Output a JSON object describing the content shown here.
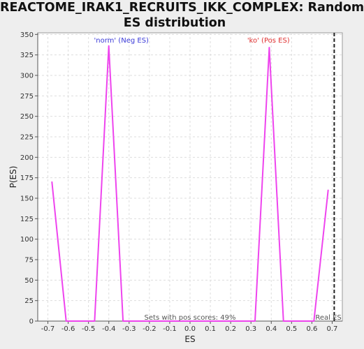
{
  "chart_data": {
    "type": "line",
    "title_lines": [
      "REACTOME_IRAK1_RECRUITS_IKK_COMPLEX: Random",
      "ES distribution"
    ],
    "xlabel": "ES",
    "ylabel": "P(ES)",
    "xlim": [
      -0.75,
      0.75
    ],
    "ylim": [
      0,
      352
    ],
    "xticks": [
      -0.7,
      -0.6,
      -0.5,
      -0.4,
      -0.3,
      -0.2,
      -0.1,
      0.0,
      0.1,
      0.2,
      0.3,
      0.4,
      0.5,
      0.6,
      0.7
    ],
    "xtick_labels": [
      "-0.7",
      "-0.6",
      "-0.5",
      "-0.4",
      "-0.3",
      "-0.2",
      "-0.1",
      "0.0",
      "0.1",
      "0.2",
      "0.3",
      "0.4",
      "0.5",
      "0.6",
      "0.7"
    ],
    "yticks": [
      0,
      25,
      50,
      75,
      100,
      125,
      150,
      175,
      200,
      225,
      250,
      275,
      300,
      325,
      350
    ],
    "ytick_labels": [
      "0",
      "25",
      "50",
      "75",
      "100",
      "125",
      "150",
      "175",
      "200",
      "225",
      "250",
      "275",
      "300",
      "325",
      "350"
    ],
    "grid": true,
    "series": [
      {
        "color": "#ee44ee",
        "x": [
          -0.68,
          -0.61,
          -0.47,
          -0.4,
          -0.33,
          0.32,
          0.39,
          0.46,
          0.61,
          0.68
        ],
        "y": [
          170,
          0,
          0,
          336,
          0,
          0,
          334,
          0,
          0,
          160
        ]
      }
    ],
    "annotations": {
      "neg_label": "'norm' (Neg ES)",
      "neg_color": "#3a3ad8",
      "neg_x": -0.4,
      "pos_label": "'ko' (Pos ES)",
      "pos_color": "#e03030",
      "pos_x": 0.4,
      "bottom_text": "Sets with pos scores: 49%",
      "real_es_label": "Real ES",
      "real_es_x": 0.71
    }
  }
}
